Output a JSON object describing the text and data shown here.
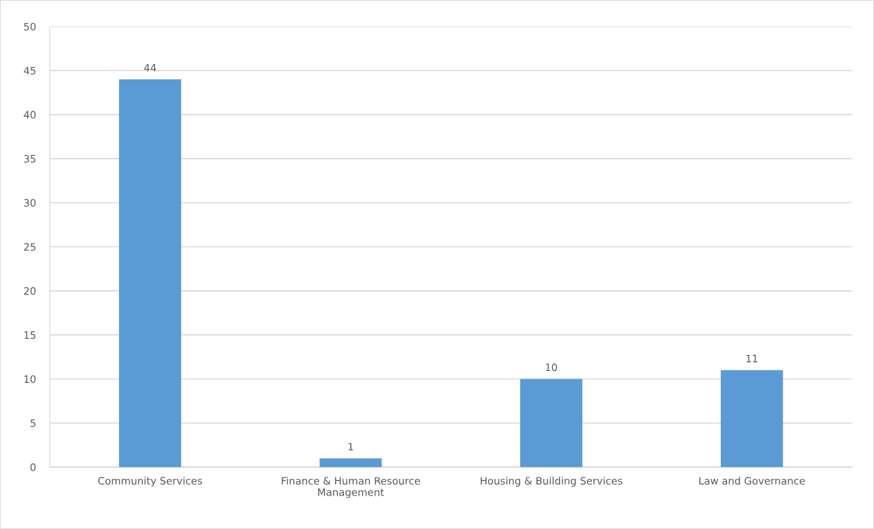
{
  "chart_data": {
    "type": "bar",
    "categories": [
      "Community Services",
      "Finance & Human Resource\nManagement",
      "Housing & Building Services",
      "Law and Governance"
    ],
    "values": [
      44,
      1,
      10,
      11
    ],
    "color": "#5b9bd5",
    "ylim": [
      0,
      50
    ],
    "yticks": [
      0,
      5,
      10,
      15,
      20,
      25,
      30,
      35,
      40,
      45,
      50
    ],
    "grid": "y",
    "data_labels": true
  }
}
